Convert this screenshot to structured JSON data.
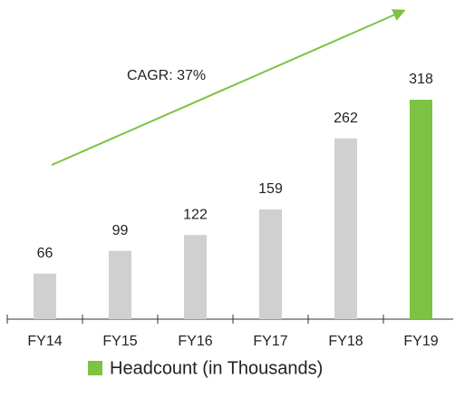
{
  "chart_data": {
    "type": "bar",
    "categories": [
      "FY14",
      "FY15",
      "FY16",
      "FY17",
      "FY18",
      "FY19"
    ],
    "series": [
      {
        "name": "Headcount (in Thousands)",
        "color": "#7dc242",
        "values": [
          66,
          99,
          122,
          159,
          262,
          318
        ],
        "colors": [
          "#d0d0d0",
          "#d0d0d0",
          "#d0d0d0",
          "#d0d0d0",
          "#d0d0d0",
          "#7dc242"
        ]
      }
    ],
    "annotation": "CAGR: 37%",
    "legend": "bottom"
  }
}
